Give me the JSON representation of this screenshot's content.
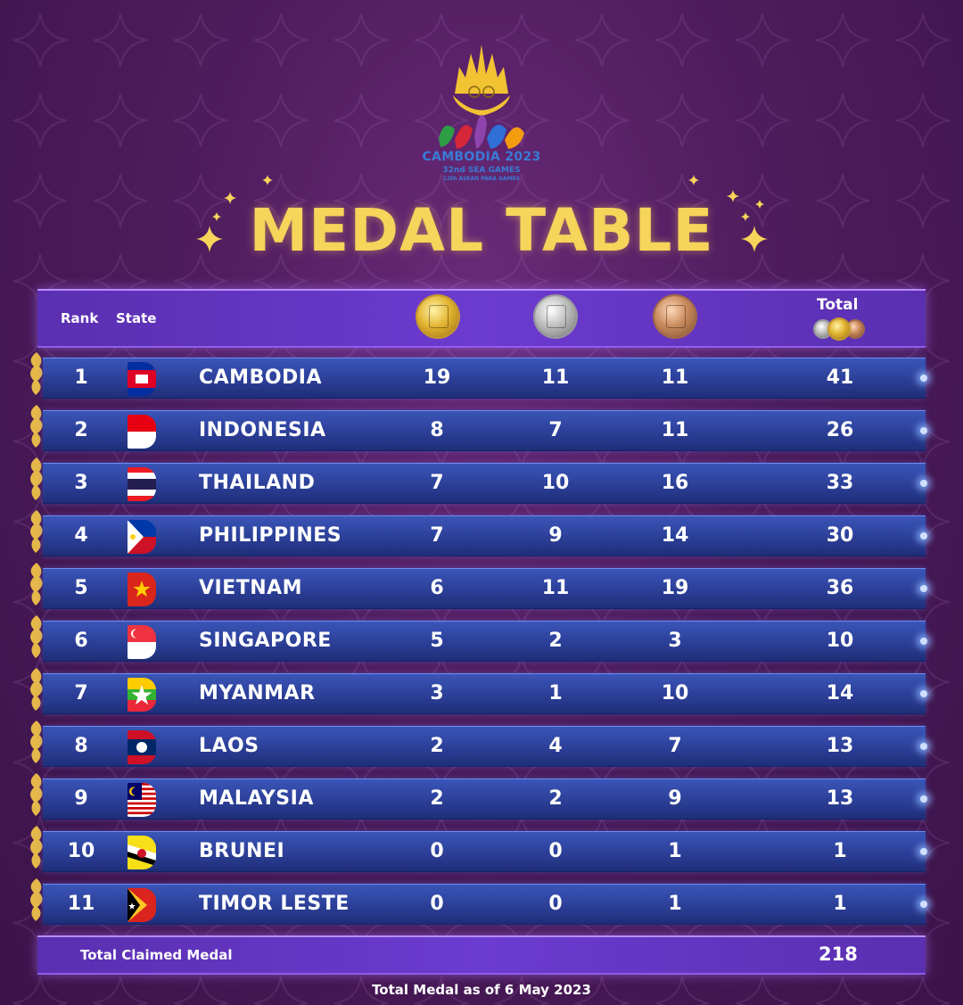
{
  "logo": {
    "line1": "CAMBODIA 2023",
    "line2": "32nd SEA GAMES",
    "line3": "12th ASEAN PARA GAMES"
  },
  "title": "MEDAL TABLE",
  "header": {
    "rank": "Rank",
    "state": "State",
    "total": "Total",
    "medal_icons": [
      "gold-medal",
      "silver-medal",
      "bronze-medal"
    ]
  },
  "rows": [
    {
      "rank": "1",
      "state": "CAMBODIA",
      "gold": "19",
      "silver": "11",
      "bronze": "11",
      "total": "41"
    },
    {
      "rank": "2",
      "state": "INDONESIA",
      "gold": "8",
      "silver": "7",
      "bronze": "11",
      "total": "26"
    },
    {
      "rank": "3",
      "state": "THAILAND",
      "gold": "7",
      "silver": "10",
      "bronze": "16",
      "total": "33"
    },
    {
      "rank": "4",
      "state": "PHILIPPINES",
      "gold": "7",
      "silver": "9",
      "bronze": "14",
      "total": "30"
    },
    {
      "rank": "5",
      "state": "VIETNAM",
      "gold": "6",
      "silver": "11",
      "bronze": "19",
      "total": "36"
    },
    {
      "rank": "6",
      "state": "SINGAPORE",
      "gold": "5",
      "silver": "2",
      "bronze": "3",
      "total": "10"
    },
    {
      "rank": "7",
      "state": "MYANMAR",
      "gold": "3",
      "silver": "1",
      "bronze": "10",
      "total": "14"
    },
    {
      "rank": "8",
      "state": "LAOS",
      "gold": "2",
      "silver": "4",
      "bronze": "7",
      "total": "13"
    },
    {
      "rank": "9",
      "state": "MALAYSIA",
      "gold": "2",
      "silver": "2",
      "bronze": "9",
      "total": "13"
    },
    {
      "rank": "10",
      "state": "BRUNEI",
      "gold": "0",
      "silver": "0",
      "bronze": "1",
      "total": "1"
    },
    {
      "rank": "11",
      "state": "TIMOR LESTE",
      "gold": "0",
      "silver": "0",
      "bronze": "1",
      "total": "1"
    }
  ],
  "total_row": {
    "label": "Total Claimed Medal",
    "value": "218"
  },
  "footnote": "Total Medal as of 6 May 2023",
  "colors": {
    "title": "#f7d45a",
    "header_bar": "#6c3bd0",
    "row": "#2c3f97",
    "background": "#4d1c5c"
  }
}
